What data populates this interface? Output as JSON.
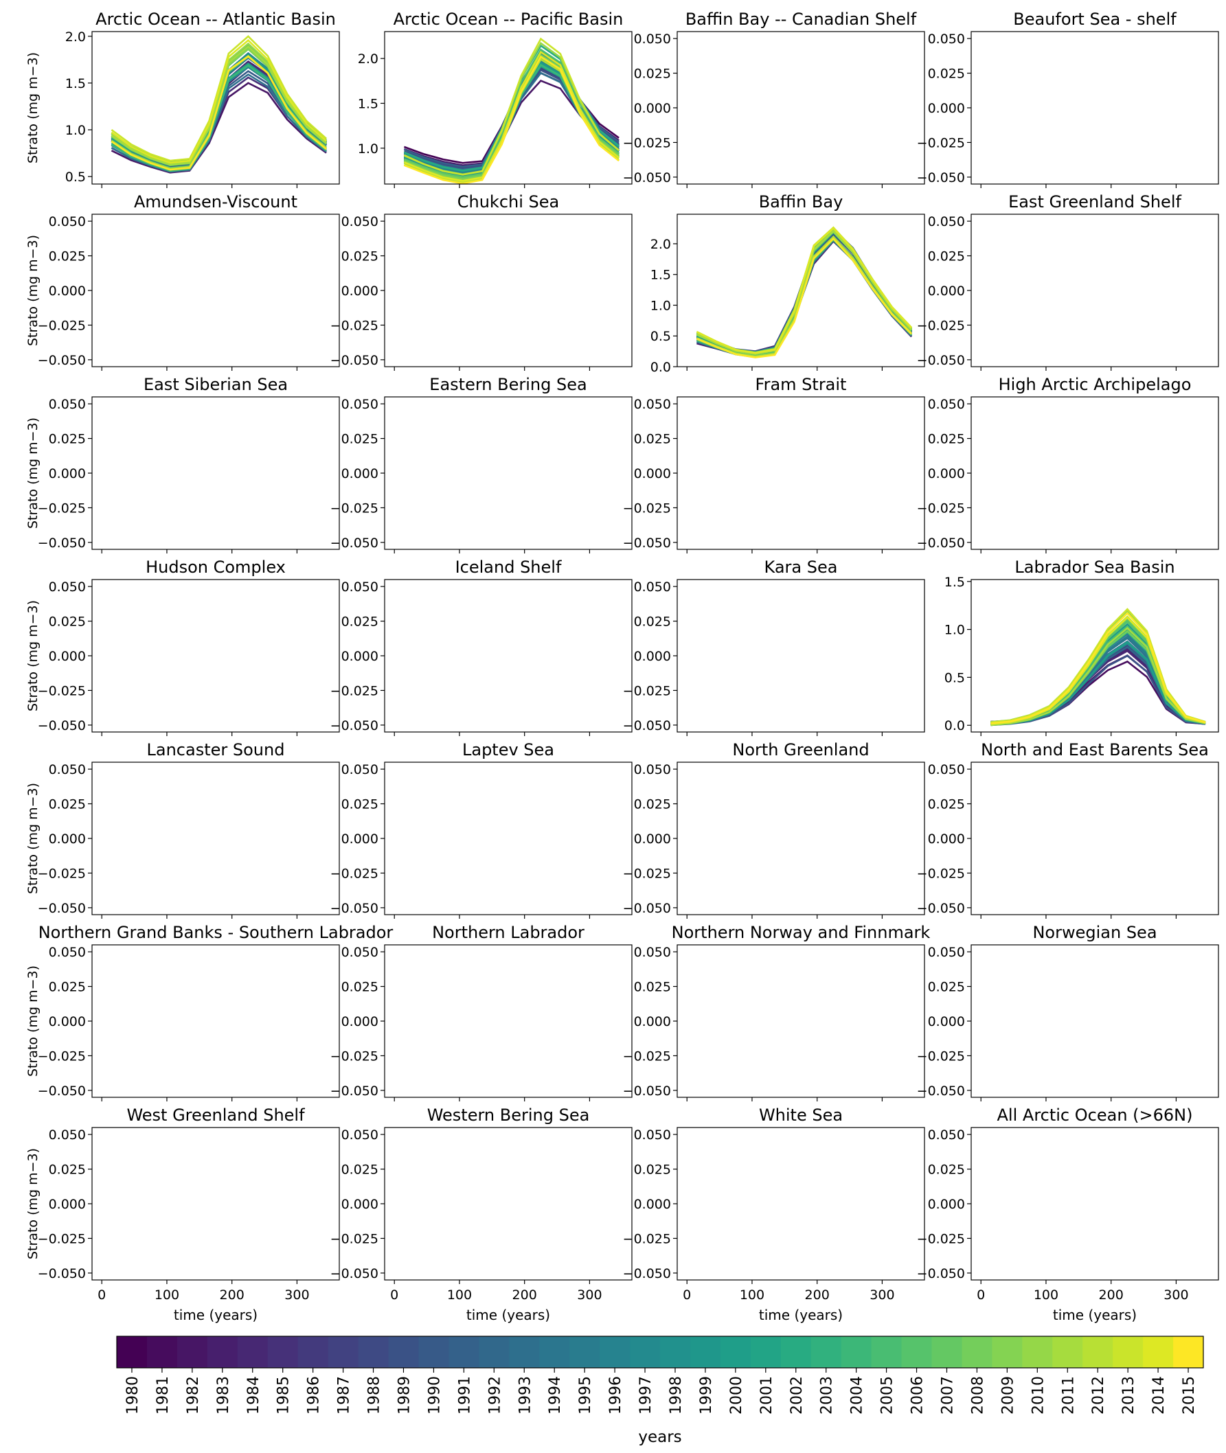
{
  "figure": {
    "ylabel": "Strato (mg m−3)",
    "xlabel": "time (years)"
  },
  "colorbar": {
    "label": "years",
    "ticks": [
      "1980",
      "1981",
      "1982",
      "1983",
      "1984",
      "1985",
      "1986",
      "1987",
      "1988",
      "1989",
      "1990",
      "1991",
      "1992",
      "1993",
      "1994",
      "1995",
      "1996",
      "1997",
      "1998",
      "1999",
      "2000",
      "2001",
      "2002",
      "2003",
      "2004",
      "2005",
      "2006",
      "2007",
      "2008",
      "2009",
      "2010",
      "2011",
      "2012",
      "2013",
      "2014",
      "2015"
    ],
    "colormap": "viridis",
    "colors": [
      "#440154",
      "#460c5d",
      "#471665",
      "#471f6d",
      "#472873",
      "#463179",
      "#433a7d",
      "#414281",
      "#3e4a84",
      "#3a5286",
      "#375a88",
      "#34618a",
      "#31688b",
      "#2e6f8d",
      "#2b768e",
      "#297c8e",
      "#26838f",
      "#238a8e",
      "#21918d",
      "#1f978b",
      "#1f9e89",
      "#22a486",
      "#28ab82",
      "#31b17e",
      "#3cb778",
      "#49bd72",
      "#56c36b",
      "#64c863",
      "#74ce5b",
      "#84d352",
      "#95d748",
      "#a6dc3e",
      "#b8e034",
      "#cae42b",
      "#dde824",
      "#fde725"
    ]
  },
  "chart_data": [
    {
      "type": "line",
      "title": "Arctic Ocean -- Atlantic Basin",
      "ylim": [
        0.42,
        2.05
      ],
      "yticks": [
        "0.5",
        "1.0",
        "1.5",
        "2.0"
      ],
      "ytick_values": [
        0.5,
        1.0,
        1.5,
        2.0
      ],
      "xlim": [
        -15,
        365
      ],
      "series_shape": {
        "x": [
          15,
          45,
          75,
          105,
          135,
          165,
          195,
          225,
          255,
          285,
          315,
          345
        ],
        "base": [
          0.85,
          0.74,
          0.66,
          0.6,
          0.62,
          0.95,
          1.45,
          1.62,
          1.5,
          1.2,
          0.98,
          0.82
        ],
        "spread": [
          0.08,
          0.07,
          0.06,
          0.06,
          0.06,
          0.1,
          0.12,
          0.14,
          0.12,
          0.1,
          0.08,
          0.07
        ],
        "trend": [
          0.1,
          0.06,
          0.04,
          0.03,
          0.03,
          0.08,
          0.3,
          0.3,
          0.22,
          0.12,
          0.06,
          0.04
        ]
      }
    },
    {
      "type": "line",
      "title": "Arctic Ocean -- Pacific Basin",
      "ylim": [
        0.6,
        2.3
      ],
      "yticks": [
        "1.0",
        "1.5",
        "2.0"
      ],
      "ytick_values": [
        1.0,
        1.5,
        2.0
      ],
      "xlim": [
        -15,
        365
      ],
      "series_shape": {
        "x": [
          15,
          45,
          75,
          105,
          135,
          165,
          195,
          225,
          255,
          285,
          315,
          345
        ],
        "base": [
          0.95,
          0.88,
          0.82,
          0.78,
          0.8,
          1.15,
          1.6,
          1.85,
          1.75,
          1.45,
          1.2,
          1.05
        ],
        "spread": [
          0.07,
          0.06,
          0.06,
          0.06,
          0.06,
          0.1,
          0.12,
          0.14,
          0.12,
          0.1,
          0.08,
          0.07
        ],
        "trend": [
          -0.1,
          -0.12,
          -0.14,
          -0.14,
          -0.12,
          -0.05,
          0.1,
          0.25,
          0.2,
          0.0,
          -0.12,
          -0.15
        ]
      }
    },
    {
      "type": "line",
      "title": "Baffin Bay -- Canadian Shelf",
      "ylim": [
        -0.055,
        0.055
      ],
      "yticks": [
        "0.050",
        "0.025",
        "0.000",
        "−0.025",
        "−0.050"
      ],
      "ytick_values": [
        0.05,
        0.025,
        0,
        -0.025,
        -0.05
      ],
      "xlim": [
        -15,
        365
      ]
    },
    {
      "type": "line",
      "title": "Beaufort Sea - shelf",
      "ylim": [
        -0.055,
        0.055
      ],
      "yticks": [
        "0.050",
        "0.025",
        "0.000",
        "−0.025",
        "−0.050"
      ],
      "ytick_values": [
        0.05,
        0.025,
        0,
        -0.025,
        -0.05
      ],
      "xlim": [
        -15,
        365
      ]
    },
    {
      "type": "line",
      "title": "Amundsen-Viscount",
      "ylim": [
        -0.055,
        0.055
      ],
      "yticks": [
        "0.050",
        "0.025",
        "0.000",
        "−0.025",
        "−0.050"
      ],
      "ytick_values": [
        0.05,
        0.025,
        0,
        -0.025,
        -0.05
      ],
      "xlim": [
        -15,
        365
      ]
    },
    {
      "type": "line",
      "title": "Chukchi Sea",
      "ylim": [
        -0.055,
        0.055
      ],
      "yticks": [
        "0.050",
        "0.025",
        "0.000",
        "−0.025",
        "−0.050"
      ],
      "ytick_values": [
        0.05,
        0.025,
        0,
        -0.025,
        -0.05
      ],
      "xlim": [
        -15,
        365
      ]
    },
    {
      "type": "line",
      "title": "Baffin Bay",
      "ylim": [
        0.0,
        2.48
      ],
      "yticks": [
        "0.0",
        "0.5",
        "1.0",
        "1.5",
        "2.0"
      ],
      "ytick_values": [
        0.0,
        0.5,
        1.0,
        1.5,
        2.0
      ],
      "xlim": [
        -15,
        365
      ],
      "series_shape": {
        "x": [
          15,
          45,
          75,
          105,
          135,
          165,
          195,
          225,
          255,
          285,
          315,
          345
        ],
        "base": [
          0.45,
          0.35,
          0.25,
          0.22,
          0.3,
          0.9,
          1.8,
          2.15,
          1.85,
          1.35,
          0.9,
          0.55
        ],
        "spread": [
          0.08,
          0.06,
          0.05,
          0.05,
          0.06,
          0.12,
          0.14,
          0.12,
          0.12,
          0.1,
          0.08,
          0.07
        ],
        "trend": [
          0.08,
          0.03,
          0.0,
          -0.02,
          -0.05,
          -0.05,
          0.1,
          0.05,
          0.0,
          0.02,
          0.03,
          0.05
        ]
      }
    },
    {
      "type": "line",
      "title": "East Greenland Shelf",
      "ylim": [
        -0.055,
        0.055
      ],
      "yticks": [
        "0.050",
        "0.025",
        "0.000",
        "−0.025",
        "−0.050"
      ],
      "ytick_values": [
        0.05,
        0.025,
        0,
        -0.025,
        -0.05
      ],
      "xlim": [
        -15,
        365
      ]
    },
    {
      "type": "line",
      "title": "East Siberian Sea",
      "ylim": [
        -0.055,
        0.055
      ],
      "yticks": [
        "0.050",
        "0.025",
        "0.000",
        "−0.025",
        "−0.050"
      ],
      "ytick_values": [
        0.05,
        0.025,
        0,
        -0.025,
        -0.05
      ],
      "xlim": [
        -15,
        365
      ]
    },
    {
      "type": "line",
      "title": "Eastern Bering Sea",
      "ylim": [
        -0.055,
        0.055
      ],
      "yticks": [
        "0.050",
        "0.025",
        "0.000",
        "−0.025",
        "−0.050"
      ],
      "ytick_values": [
        0.05,
        0.025,
        0,
        -0.025,
        -0.05
      ],
      "xlim": [
        -15,
        365
      ]
    },
    {
      "type": "line",
      "title": "Fram Strait",
      "ylim": [
        -0.055,
        0.055
      ],
      "yticks": [
        "0.050",
        "0.025",
        "0.000",
        "−0.025",
        "−0.050"
      ],
      "ytick_values": [
        0.05,
        0.025,
        0,
        -0.025,
        -0.05
      ],
      "xlim": [
        -15,
        365
      ]
    },
    {
      "type": "line",
      "title": "High Arctic Archipelago",
      "ylim": [
        -0.055,
        0.055
      ],
      "yticks": [
        "0.050",
        "0.025",
        "0.000",
        "−0.025",
        "−0.050"
      ],
      "ytick_values": [
        0.05,
        0.025,
        0,
        -0.025,
        -0.05
      ],
      "xlim": [
        -15,
        365
      ]
    },
    {
      "type": "line",
      "title": "Hudson Complex",
      "ylim": [
        -0.055,
        0.055
      ],
      "yticks": [
        "0.050",
        "0.025",
        "0.000",
        "−0.025",
        "−0.050"
      ],
      "ytick_values": [
        0.05,
        0.025,
        0,
        -0.025,
        -0.05
      ],
      "xlim": [
        -15,
        365
      ]
    },
    {
      "type": "line",
      "title": "Iceland Shelf",
      "ylim": [
        -0.055,
        0.055
      ],
      "yticks": [
        "0.050",
        "0.025",
        "0.000",
        "−0.025",
        "−0.050"
      ],
      "ytick_values": [
        0.05,
        0.025,
        0,
        -0.025,
        -0.05
      ],
      "xlim": [
        -15,
        365
      ]
    },
    {
      "type": "line",
      "title": "Kara Sea",
      "ylim": [
        -0.055,
        0.055
      ],
      "yticks": [
        "0.050",
        "0.025",
        "0.000",
        "−0.025",
        "−0.050"
      ],
      "ytick_values": [
        0.05,
        0.025,
        0,
        -0.025,
        -0.05
      ],
      "xlim": [
        -15,
        365
      ]
    },
    {
      "type": "line",
      "title": "Labrador Sea Basin",
      "ylim": [
        -0.07,
        1.52
      ],
      "yticks": [
        "0.0",
        "0.5",
        "1.0",
        "1.5"
      ],
      "ytick_values": [
        0.0,
        0.5,
        1.0,
        1.5
      ],
      "xlim": [
        -15,
        365
      ],
      "series_shape": {
        "x": [
          15,
          45,
          75,
          105,
          135,
          165,
          195,
          225,
          255,
          285,
          315,
          345
        ],
        "base": [
          0.02,
          0.03,
          0.06,
          0.12,
          0.25,
          0.45,
          0.62,
          0.72,
          0.55,
          0.2,
          0.04,
          0.02
        ],
        "spread": [
          0.02,
          0.02,
          0.03,
          0.04,
          0.06,
          0.08,
          0.1,
          0.12,
          0.1,
          0.06,
          0.02,
          0.01
        ],
        "trend": [
          0.0,
          0.01,
          0.03,
          0.06,
          0.12,
          0.2,
          0.35,
          0.45,
          0.4,
          0.15,
          0.05,
          0.01
        ]
      }
    },
    {
      "type": "line",
      "title": "Lancaster Sound",
      "ylim": [
        -0.055,
        0.055
      ],
      "yticks": [
        "0.050",
        "0.025",
        "0.000",
        "−0.025",
        "−0.050"
      ],
      "ytick_values": [
        0.05,
        0.025,
        0,
        -0.025,
        -0.05
      ],
      "xlim": [
        -15,
        365
      ]
    },
    {
      "type": "line",
      "title": "Laptev Sea",
      "ylim": [
        -0.055,
        0.055
      ],
      "yticks": [
        "0.050",
        "0.025",
        "0.000",
        "−0.025",
        "−0.050"
      ],
      "ytick_values": [
        0.05,
        0.025,
        0,
        -0.025,
        -0.05
      ],
      "xlim": [
        -15,
        365
      ]
    },
    {
      "type": "line",
      "title": "North Greenland",
      "ylim": [
        -0.055,
        0.055
      ],
      "yticks": [
        "0.050",
        "0.025",
        "0.000",
        "−0.025",
        "−0.050"
      ],
      "ytick_values": [
        0.05,
        0.025,
        0,
        -0.025,
        -0.05
      ],
      "xlim": [
        -15,
        365
      ]
    },
    {
      "type": "line",
      "title": "North and East Barents Sea",
      "ylim": [
        -0.055,
        0.055
      ],
      "yticks": [
        "0.050",
        "0.025",
        "0.000",
        "−0.025",
        "−0.050"
      ],
      "ytick_values": [
        0.05,
        0.025,
        0,
        -0.025,
        -0.05
      ],
      "xlim": [
        -15,
        365
      ]
    },
    {
      "type": "line",
      "title": "Northern Grand Banks - Southern Labrador",
      "ylim": [
        -0.055,
        0.055
      ],
      "yticks": [
        "0.050",
        "0.025",
        "0.000",
        "−0.025",
        "−0.050"
      ],
      "ytick_values": [
        0.05,
        0.025,
        0,
        -0.025,
        -0.05
      ],
      "xlim": [
        -15,
        365
      ]
    },
    {
      "type": "line",
      "title": "Northern Labrador",
      "ylim": [
        -0.055,
        0.055
      ],
      "yticks": [
        "0.050",
        "0.025",
        "0.000",
        "−0.025",
        "−0.050"
      ],
      "ytick_values": [
        0.05,
        0.025,
        0,
        -0.025,
        -0.05
      ],
      "xlim": [
        -15,
        365
      ]
    },
    {
      "type": "line",
      "title": "Northern Norway and Finnmark",
      "ylim": [
        -0.055,
        0.055
      ],
      "yticks": [
        "0.050",
        "0.025",
        "0.000",
        "−0.025",
        "−0.050"
      ],
      "ytick_values": [
        0.05,
        0.025,
        0,
        -0.025,
        -0.05
      ],
      "xlim": [
        -15,
        365
      ]
    },
    {
      "type": "line",
      "title": "Norwegian Sea",
      "ylim": [
        -0.055,
        0.055
      ],
      "yticks": [
        "0.050",
        "0.025",
        "0.000",
        "−0.025",
        "−0.050"
      ],
      "ytick_values": [
        0.05,
        0.025,
        0,
        -0.025,
        -0.05
      ],
      "xlim": [
        -15,
        365
      ]
    },
    {
      "type": "line",
      "title": "West Greenland Shelf",
      "ylim": [
        -0.055,
        0.055
      ],
      "yticks": [
        "0.050",
        "0.025",
        "0.000",
        "−0.025",
        "−0.050"
      ],
      "ytick_values": [
        0.05,
        0.025,
        0,
        -0.025,
        -0.05
      ],
      "xlim": [
        -15,
        365
      ],
      "xticks": [
        "0",
        "100",
        "200",
        "300"
      ],
      "xtick_values": [
        0,
        100,
        200,
        300
      ]
    },
    {
      "type": "line",
      "title": "Western Bering Sea",
      "ylim": [
        -0.055,
        0.055
      ],
      "yticks": [
        "0.050",
        "0.025",
        "0.000",
        "−0.025",
        "−0.050"
      ],
      "ytick_values": [
        0.05,
        0.025,
        0,
        -0.025,
        -0.05
      ],
      "xlim": [
        -15,
        365
      ],
      "xticks": [
        "0",
        "100",
        "200",
        "300"
      ],
      "xtick_values": [
        0,
        100,
        200,
        300
      ]
    },
    {
      "type": "line",
      "title": "White Sea",
      "ylim": [
        -0.055,
        0.055
      ],
      "yticks": [
        "0.050",
        "0.025",
        "0.000",
        "−0.025",
        "−0.050"
      ],
      "ytick_values": [
        0.05,
        0.025,
        0,
        -0.025,
        -0.05
      ],
      "xlim": [
        -15,
        365
      ],
      "xticks": [
        "0",
        "100",
        "200",
        "300"
      ],
      "xtick_values": [
        0,
        100,
        200,
        300
      ]
    },
    {
      "type": "line",
      "title": "All Arctic Ocean (>66N)",
      "ylim": [
        -0.055,
        0.055
      ],
      "yticks": [
        "0.050",
        "0.025",
        "0.000",
        "−0.025",
        "−0.050"
      ],
      "ytick_values": [
        0.05,
        0.025,
        0,
        -0.025,
        -0.05
      ],
      "xlim": [
        -15,
        365
      ],
      "xticks": [
        "0",
        "100",
        "200",
        "300"
      ],
      "xtick_values": [
        0,
        100,
        200,
        300
      ]
    }
  ]
}
